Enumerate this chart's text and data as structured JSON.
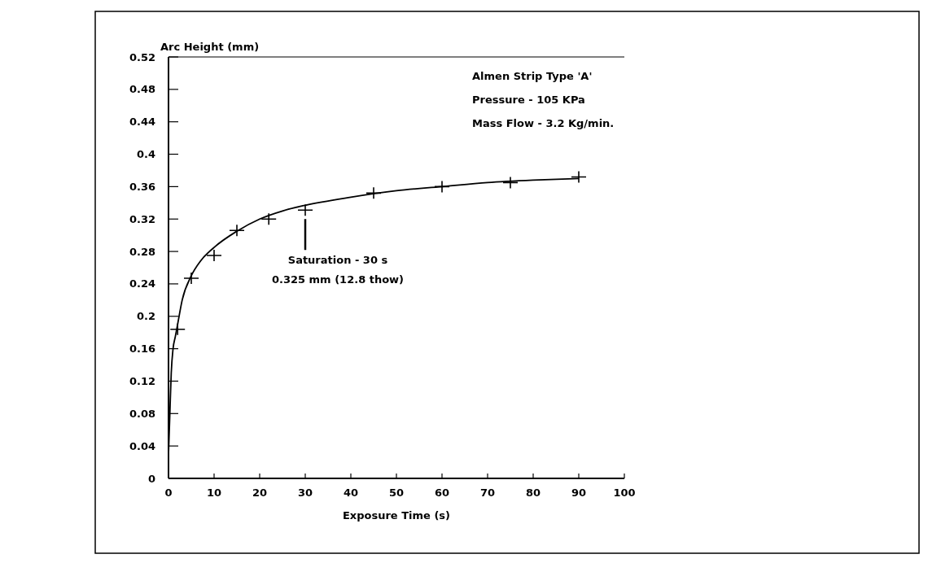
{
  "chart_data": {
    "type": "scatter",
    "xlabel": "Exposure Time (s)",
    "ylabel": "Arc Height (mm)",
    "xlim": [
      0,
      100
    ],
    "xticks": [
      0,
      10,
      20,
      30,
      40,
      50,
      60,
      70,
      80,
      90,
      100
    ],
    "ylim": [
      0,
      0.52
    ],
    "yticks": [
      0,
      0.04,
      0.08,
      0.12,
      0.16,
      0.2,
      0.24,
      0.28,
      0.32,
      0.36,
      0.4,
      0.44,
      0.48,
      0.52
    ],
    "marker": "cross",
    "grid": false,
    "series": [
      {
        "color": "#000000",
        "x": [
          2,
          5,
          10,
          15,
          22,
          30,
          45,
          60,
          75,
          90
        ],
        "values": [
          0.184,
          0.247,
          0.275,
          0.306,
          0.32,
          0.331,
          0.352,
          0.36,
          0.365,
          0.372
        ]
      },
      {
        "type": "line",
        "color": "#000000",
        "marker": "none",
        "x": [
          0,
          0.3,
          0.6,
          1,
          1.5,
          2,
          3,
          5,
          7,
          10,
          15,
          20,
          25,
          30,
          40,
          50,
          60,
          70,
          80,
          90
        ],
        "values": [
          0.03,
          0.08,
          0.13,
          0.16,
          0.175,
          0.19,
          0.22,
          0.25,
          0.268,
          0.285,
          0.305,
          0.32,
          0.33,
          0.337,
          0.347,
          0.355,
          0.36,
          0.365,
          0.368,
          0.37
        ]
      }
    ],
    "annotations": [
      "Almen Strip Type 'A'",
      "Pressure - 105 KPa",
      "Mass Flow - 3.2 Kg/min.",
      {
        "text": "Saturation - 30 s\n0.325 mm (12.8 thow)",
        "x": 30,
        "y": 0.32
      }
    ]
  }
}
